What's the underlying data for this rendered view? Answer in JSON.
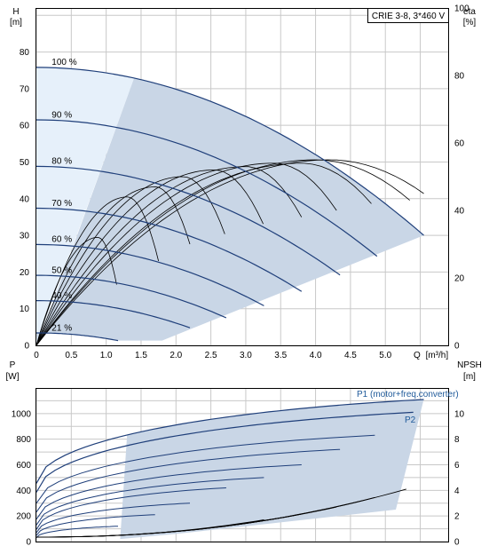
{
  "chart_data": [
    {
      "type": "line",
      "panel": "head-efficiency",
      "title_box": "CRIE 3-8, 3*460 V",
      "y_label": "H",
      "y_unit": "[m]",
      "y2_label": "eta",
      "y2_unit": "[%]",
      "x_label": "Q",
      "x_unit": "[m³/h]",
      "xlim": [
        0,
        5.9
      ],
      "ylim": [
        0,
        92
      ],
      "y2lim": [
        0,
        100
      ],
      "x_ticks": [
        "0",
        "0.5",
        "1.0",
        "1.5",
        "2.0",
        "2.5",
        "3.0",
        "3.5",
        "4.0",
        "4.5",
        "5.0"
      ],
      "y_ticks": [
        "0",
        "10",
        "20",
        "30",
        "40",
        "50",
        "60",
        "70",
        "80"
      ],
      "y2_ticks": [
        "0",
        "20",
        "40",
        "60",
        "80",
        "100"
      ],
      "colors": {
        "head": "#1f3f7a",
        "efficiency": "#000000",
        "area": "#c9d6e6",
        "low_area": "#e6f0fa",
        "grid": "#c8c8c8"
      },
      "series": [
        {
          "name": "100 %",
          "kind": "head",
          "h0": 75.8,
          "qmax": 5.55,
          "hend": 30.0
        },
        {
          "name": "90 %",
          "kind": "head",
          "h0": 61.5,
          "qmax": 4.88,
          "hend": 24.3
        },
        {
          "name": "80 %",
          "kind": "head",
          "h0": 48.8,
          "qmax": 4.35,
          "hend": 19.2
        },
        {
          "name": "70 %",
          "kind": "head",
          "h0": 37.4,
          "qmax": 3.8,
          "hend": 14.7
        },
        {
          "name": "60 %",
          "kind": "head",
          "h0": 27.5,
          "qmax": 3.26,
          "hend": 10.8
        },
        {
          "name": "50 %",
          "kind": "head",
          "h0": 19.1,
          "qmax": 2.72,
          "hend": 7.5
        },
        {
          "name": "40 %",
          "kind": "head",
          "h0": 12.2,
          "qmax": 2.2,
          "hend": 4.8
        },
        {
          "name": "21 %",
          "kind": "head",
          "h0": 3.4,
          "qmax": 1.17,
          "hend": 1.3
        }
      ],
      "efficiency_curves": [
        {
          "qpeak": 0.88,
          "peak": 32,
          "qend": 1.15,
          "vend": 18
        },
        {
          "qpeak": 1.3,
          "peak": 44,
          "qend": 1.75,
          "vend": 25
        },
        {
          "qpeak": 1.7,
          "peak": 47,
          "qend": 2.2,
          "vend": 30
        },
        {
          "qpeak": 2.1,
          "peak": 50,
          "qend": 2.7,
          "vend": 33
        },
        {
          "qpeak": 2.55,
          "peak": 52,
          "qend": 3.25,
          "vend": 36
        },
        {
          "qpeak": 3.0,
          "peak": 53,
          "qend": 3.8,
          "vend": 38
        },
        {
          "qpeak": 3.4,
          "peak": 54,
          "qend": 4.3,
          "vend": 40
        },
        {
          "qpeak": 3.8,
          "peak": 54,
          "qend": 4.8,
          "vend": 42
        },
        {
          "qpeak": 4.0,
          "peak": 55,
          "qend": 5.35,
          "vend": 43
        },
        {
          "qpeak": 4.2,
          "peak": 55,
          "qend": 5.55,
          "vend": 45
        }
      ]
    },
    {
      "type": "line",
      "panel": "power-npsh",
      "y_label": "P",
      "y_unit": "[W]",
      "y2_label": "NPSH",
      "y2_unit": "[m]",
      "xlim": [
        0,
        5.9
      ],
      "ylim": [
        0,
        1200
      ],
      "y2lim": [
        0,
        12
      ],
      "y_ticks": [
        "0",
        "200",
        "400",
        "600",
        "800",
        "1000"
      ],
      "y2_ticks": [
        "0",
        "2",
        "4",
        "6",
        "8",
        "10"
      ],
      "series": [
        {
          "name": "P1 (motor+freq.converter)",
          "kind": "power_p1",
          "p0": 455,
          "qend": 5.55,
          "pend": 1110
        },
        {
          "name": "P2",
          "kind": "power_p2",
          "p0": 385,
          "qend": 5.4,
          "pend": 1010
        }
      ],
      "power_sets": [
        {
          "p0": 300,
          "qend": 4.85,
          "pend": 830
        },
        {
          "p0": 230,
          "qend": 4.35,
          "pend": 720
        },
        {
          "p0": 175,
          "qend": 3.8,
          "pend": 600
        },
        {
          "p0": 130,
          "qend": 3.26,
          "pend": 500
        },
        {
          "p0": 95,
          "qend": 2.72,
          "pend": 420
        },
        {
          "p0": 70,
          "qend": 2.2,
          "pend": 300
        },
        {
          "p0": 48,
          "qend": 1.7,
          "pend": 210
        },
        {
          "p0": 30,
          "qend": 1.17,
          "pend": 120
        }
      ],
      "npsh": [
        {
          "qend": 5.3,
          "vend": 4.1
        },
        {
          "qend": 4.85,
          "vend": 3.45
        },
        {
          "qend": 4.3,
          "vend": 2.7
        },
        {
          "qend": 3.8,
          "vend": 2.15
        },
        {
          "qend": 3.26,
          "vend": 1.7
        }
      ]
    }
  ]
}
